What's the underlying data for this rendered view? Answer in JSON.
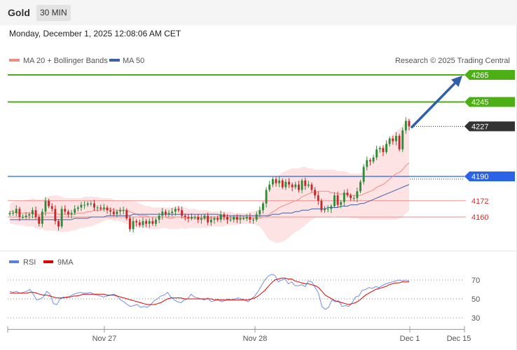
{
  "header": {
    "title": "Gold",
    "timeframe": "30 MIN",
    "datetime": "Monday, December 1, 2025 12:08:06 AM CET"
  },
  "legend": {
    "ma20": "MA 20 + Bollinger Bands",
    "ma50": "MA 50",
    "credit": "Research © 2025 Trading Central"
  },
  "rsi_legend": {
    "rsi": "RSI",
    "ma": "9MA"
  },
  "colors": {
    "up": "#2e8b3a",
    "down": "#c62828",
    "ma20": "#f28b82",
    "ma50": "#3f5fa8",
    "band": "#fde3e3",
    "resistance": "#4caf14",
    "support": "#2a63e8",
    "current": "#333333",
    "arrow": "#2f5fa8"
  },
  "chart_data": [
    {
      "type": "candlestick",
      "price_range": [
        4125,
        4275
      ],
      "x_labels": [
        "Nov 27",
        "Nov 28",
        "Dec 1",
        "Dec 15"
      ],
      "levels": [
        {
          "value": 4265,
          "label": "4265",
          "kind": "resistance"
        },
        {
          "value": 4245,
          "label": "4245",
          "kind": "resistance"
        },
        {
          "value": 4227,
          "label": "4227",
          "kind": "current"
        },
        {
          "value": 4190,
          "label": "4190",
          "kind": "pivot"
        },
        {
          "value": 4172,
          "label": "4172",
          "kind": "support"
        },
        {
          "value": 4160,
          "label": "4160",
          "kind": "support"
        }
      ],
      "close": [
        4163,
        4163,
        4166,
        4160,
        4160,
        4161,
        4162,
        4165,
        4160,
        4155,
        4164,
        4172,
        4168,
        4166,
        4157,
        4153,
        4166,
        4164,
        4162,
        4163,
        4166,
        4167,
        4169,
        4169,
        4170,
        4170,
        4167,
        4167,
        4166,
        4167,
        4165,
        4164,
        4162,
        4164,
        4165,
        4165,
        4159,
        4151,
        4157,
        4156,
        4154,
        4157,
        4155,
        4157,
        4155,
        4158,
        4161,
        4164,
        4162,
        4163,
        4164,
        4166,
        4165,
        4161,
        4160,
        4159,
        4160,
        4160,
        4158,
        4159,
        4161,
        4156,
        4158,
        4159,
        4158,
        4162,
        4160,
        4158,
        4158,
        4160,
        4158,
        4159,
        4159,
        4160,
        4158,
        4158,
        4162,
        4165,
        4170,
        4180,
        4184,
        4188,
        4185,
        4187,
        4182,
        4186,
        4184,
        4182,
        4184,
        4180,
        4187,
        4183,
        4184,
        4180,
        4176,
        4172,
        4165,
        4166,
        4166,
        4168,
        4176,
        4169,
        4171,
        4178,
        4176,
        4174,
        4174,
        4179,
        4186,
        4197,
        4202,
        4201,
        4204,
        4210,
        4211,
        4208,
        4214,
        4218,
        4216,
        4220,
        4210,
        4224,
        4231,
        4227
      ],
      "ma20": [
        4164,
        4164,
        4163,
        4163,
        4163,
        4163,
        4163,
        4163,
        4162,
        4162,
        4162,
        4163,
        4163,
        4163,
        4163,
        4162,
        4162,
        4162,
        4162,
        4162,
        4162,
        4163,
        4163,
        4163,
        4164,
        4164,
        4165,
        4165,
        4165,
        4166,
        4166,
        4166,
        4165,
        4165,
        4165,
        4165,
        4165,
        4164,
        4163,
        4162,
        4161,
        4161,
        4161,
        4160,
        4160,
        4160,
        4160,
        4160,
        4160,
        4159,
        4159,
        4160,
        4160,
        4160,
        4159,
        4159,
        4159,
        4159,
        4159,
        4159,
        4159,
        4159,
        4159,
        4159,
        4159,
        4159,
        4159,
        4159,
        4159,
        4159,
        4159,
        4159,
        4159,
        4159,
        4159,
        4159,
        4159,
        4159,
        4160,
        4160,
        4162,
        4164,
        4165,
        4167,
        4168,
        4169,
        4170,
        4171,
        4172,
        4173,
        4175,
        4176,
        4177,
        4178,
        4178,
        4179,
        4179,
        4179,
        4179,
        4178,
        4178,
        4177,
        4177,
        4177,
        4177,
        4176,
        4176,
        4176,
        4176,
        4177,
        4178,
        4179,
        4180,
        4182,
        4183,
        4184,
        4186,
        4188,
        4190,
        4192,
        4193,
        4195,
        4198,
        4200
      ],
      "ma50": [
        4158,
        4158,
        4158,
        4158,
        4158,
        4158,
        4158,
        4158,
        4158,
        4158,
        4158,
        4158,
        4158,
        4158,
        4158,
        4158,
        4158,
        4158,
        4158,
        4158,
        4159,
        4159,
        4159,
        4159,
        4159,
        4160,
        4160,
        4160,
        4160,
        4160,
        4161,
        4161,
        4161,
        4161,
        4161,
        4161,
        4161,
        4161,
        4162,
        4162,
        4162,
        4162,
        4162,
        4162,
        4162,
        4162,
        4162,
        4162,
        4162,
        4162,
        4162,
        4162,
        4162,
        4162,
        4162,
        4162,
        4162,
        4162,
        4162,
        4162,
        4162,
        4162,
        4162,
        4162,
        4162,
        4161,
        4161,
        4161,
        4161,
        4161,
        4161,
        4161,
        4161,
        4161,
        4161,
        4161,
        4161,
        4161,
        4161,
        4161,
        4161,
        4162,
        4162,
        4162,
        4163,
        4163,
        4163,
        4163,
        4164,
        4164,
        4165,
        4165,
        4165,
        4166,
        4166,
        4166,
        4166,
        4166,
        4167,
        4167,
        4167,
        4167,
        4168,
        4168,
        4168,
        4169,
        4169,
        4169,
        4170,
        4170,
        4171,
        4172,
        4173,
        4174,
        4175,
        4176,
        4177,
        4178,
        4179,
        4180,
        4181,
        4182,
        4183,
        4184
      ],
      "bb_upper": [
        4170,
        4171,
        4172,
        4172,
        4172,
        4173,
        4173,
        4174,
        4173,
        4173,
        4173,
        4174,
        4175,
        4176,
        4176,
        4176,
        4175,
        4174,
        4174,
        4174,
        4174,
        4174,
        4174,
        4175,
        4175,
        4175,
        4175,
        4175,
        4174,
        4174,
        4174,
        4174,
        4173,
        4172,
        4172,
        4172,
        4172,
        4172,
        4172,
        4171,
        4170,
        4169,
        4168,
        4168,
        4167,
        4167,
        4167,
        4167,
        4167,
        4167,
        4167,
        4168,
        4168,
        4167,
        4167,
        4166,
        4166,
        4166,
        4165,
        4165,
        4165,
        4165,
        4164,
        4164,
        4164,
        4164,
        4164,
        4164,
        4164,
        4163,
        4163,
        4163,
        4163,
        4163,
        4164,
        4164,
        4165,
        4166,
        4170,
        4176,
        4181,
        4185,
        4188,
        4191,
        4193,
        4194,
        4195,
        4196,
        4196,
        4196,
        4197,
        4197,
        4196,
        4196,
        4195,
        4195,
        4195,
        4195,
        4195,
        4195,
        4195,
        4194,
        4194,
        4194,
        4193,
        4192,
        4192,
        4192,
        4192,
        4194,
        4197,
        4200,
        4203,
        4207,
        4210,
        4212,
        4215,
        4218,
        4221,
        4223,
        4225,
        4228,
        4231,
        4234
      ],
      "bb_lower": [
        4155,
        4155,
        4154,
        4154,
        4154,
        4153,
        4153,
        4153,
        4152,
        4151,
        4151,
        4150,
        4150,
        4150,
        4150,
        4149,
        4149,
        4149,
        4149,
        4150,
        4150,
        4151,
        4152,
        4152,
        4153,
        4153,
        4154,
        4155,
        4156,
        4157,
        4158,
        4158,
        4157,
        4157,
        4157,
        4156,
        4155,
        4154,
        4153,
        4152,
        4152,
        4152,
        4152,
        4151,
        4151,
        4151,
        4151,
        4152,
        4152,
        4151,
        4151,
        4151,
        4151,
        4152,
        4151,
        4152,
        4152,
        4152,
        4152,
        4152,
        4152,
        4152,
        4153,
        4153,
        4153,
        4153,
        4153,
        4154,
        4154,
        4154,
        4154,
        4155,
        4155,
        4155,
        4155,
        4155,
        4154,
        4153,
        4150,
        4146,
        4143,
        4142,
        4141,
        4141,
        4142,
        4143,
        4145,
        4147,
        4149,
        4150,
        4152,
        4154,
        4156,
        4158,
        4159,
        4160,
        4160,
        4160,
        4160,
        4160,
        4161,
        4160,
        4160,
        4160,
        4160,
        4159,
        4159,
        4159,
        4158,
        4158,
        4158,
        4158,
        4158,
        4158,
        4158,
        4158,
        4158,
        4158,
        4158,
        4158,
        4159,
        4160,
        4163,
        4165
      ]
    },
    {
      "type": "line",
      "series_names": [
        "RSI",
        "9MA"
      ],
      "y_ticks": [
        70,
        50,
        30
      ],
      "rsi": [
        58,
        57,
        58,
        56,
        57,
        58,
        60,
        55,
        49,
        50,
        52,
        58,
        55,
        45,
        44,
        50,
        52,
        51,
        53,
        55,
        56,
        57,
        56,
        56,
        57,
        55,
        54,
        53,
        52,
        53,
        54,
        55,
        53,
        49,
        47,
        44,
        42,
        43,
        44,
        41,
        42,
        41,
        44,
        48,
        50,
        53,
        54,
        57,
        52,
        49,
        47,
        46,
        49,
        50,
        55,
        52,
        51,
        50,
        49,
        51,
        47,
        48,
        50,
        47,
        48,
        50,
        49,
        50,
        51,
        50,
        49,
        47,
        50,
        53,
        58,
        64,
        70,
        74,
        76,
        75,
        68,
        70,
        71,
        66,
        68,
        64,
        64,
        65,
        63,
        69,
        68,
        62,
        56,
        42,
        39,
        41,
        49,
        47,
        48,
        42,
        43,
        42,
        46,
        52,
        53,
        59,
        60,
        62,
        61,
        63,
        62,
        64,
        66,
        67,
        68,
        69,
        70,
        69,
        70,
        69
      ],
      "ma": [
        56,
        56,
        56,
        56,
        56,
        56,
        57,
        57,
        56,
        55,
        54,
        54,
        53,
        52,
        51,
        51,
        51,
        52,
        52,
        53,
        53,
        54,
        55,
        55,
        55,
        55,
        55,
        55,
        55,
        54,
        54,
        54,
        53,
        52,
        51,
        50,
        49,
        48,
        47,
        46,
        45,
        44,
        44,
        44,
        45,
        46,
        48,
        50,
        51,
        51,
        51,
        51,
        50,
        50,
        50,
        50,
        50,
        50,
        50,
        50,
        50,
        49,
        49,
        49,
        49,
        49,
        49,
        49,
        49,
        49,
        49,
        49,
        50,
        51,
        53,
        56,
        59,
        63,
        67,
        70,
        71,
        72,
        72,
        71,
        71,
        69,
        68,
        67,
        66,
        66,
        65,
        64,
        62,
        58,
        54,
        52,
        50,
        48,
        47,
        46,
        45,
        44,
        45,
        46,
        48,
        51,
        54,
        56,
        58,
        60,
        61,
        62,
        63,
        65,
        66,
        67,
        67,
        68,
        68,
        68
      ]
    }
  ]
}
